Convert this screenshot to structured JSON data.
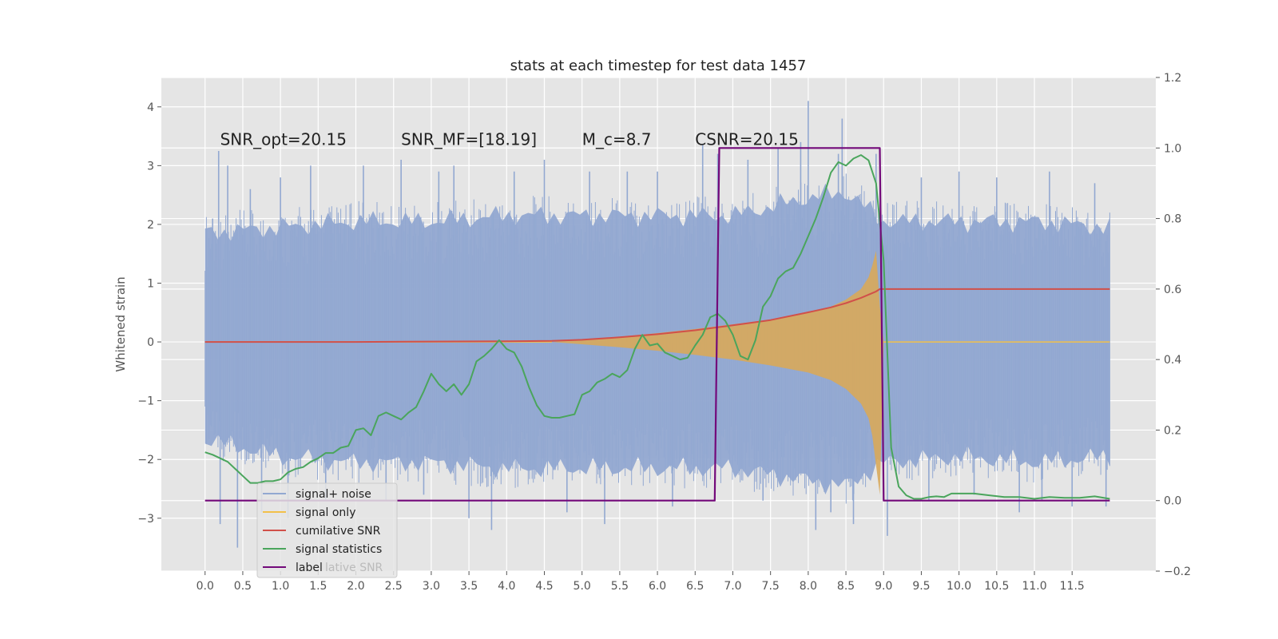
{
  "chart_data": {
    "type": "line",
    "title": "stats at each timestep for test data 1457",
    "ylabel": "Whitened strain",
    "xlabel": "",
    "xlim": [
      -0.58,
      12.61
    ],
    "ylim": [
      -3.9,
      4.5
    ],
    "y2lim": [
      -0.2,
      1.2
    ],
    "grid": true,
    "legend_position": "lower-left",
    "x_ticks": [
      "0.0",
      "0.5",
      "1.0",
      "1.5",
      "2.0",
      "2.5",
      "3.0",
      "3.5",
      "4.0",
      "4.5",
      "5.0",
      "5.5",
      "6.0",
      "6.5",
      "7.0",
      "7.5",
      "8.0",
      "8.5",
      "9.0",
      "9.5",
      "10.0",
      "10.5",
      "11.0",
      "11.5"
    ],
    "y_ticks": [
      "−3",
      "−2",
      "−1",
      "0",
      "1",
      "2",
      "3",
      "4"
    ],
    "y2_ticks": [
      "−0.2",
      "0.0",
      "0.2",
      "0.4",
      "0.6",
      "0.8",
      "1.0",
      "1.2"
    ],
    "annotations": [
      {
        "text": "SNR_opt=20.15",
        "x": 0.2,
        "y": 3.35
      },
      {
        "text": "SNR_MF=[18.19]",
        "x": 2.6,
        "y": 3.35
      },
      {
        "text": "M_c=8.7",
        "x": 5.0,
        "y": 3.35
      },
      {
        "text": "CSNR=20.15",
        "x": 6.5,
        "y": 3.35
      }
    ],
    "legend_entries": [
      {
        "label": "signal+ noise",
        "color": "#92a8d1"
      },
      {
        "label": "signal only",
        "color": "#f2c04a"
      },
      {
        "label": "cumilative SNR",
        "color": "#d1504a"
      },
      {
        "label": "signal statistics",
        "color": "#4aa55c"
      },
      {
        "label": "label",
        "color": "#73097a"
      }
    ],
    "legend_ghost_text": "lative SNR",
    "series": [
      {
        "name": "signal+ noise",
        "axis": "left",
        "color": "#92a8d1",
        "envelope_x": [
          0,
          1,
          2,
          3,
          4,
          5,
          6,
          7,
          8,
          8.5,
          9,
          10,
          11,
          12
        ],
        "envelope_upper": [
          2.2,
          2.3,
          2.4,
          2.4,
          2.5,
          2.5,
          2.5,
          2.5,
          2.8,
          2.9,
          2.4,
          2.4,
          2.4,
          2.3
        ],
        "envelope_lower": [
          -2.0,
          -2.3,
          -2.4,
          -2.4,
          -2.5,
          -2.5,
          -2.5,
          -2.5,
          -2.7,
          -2.8,
          -2.4,
          -2.3,
          -2.4,
          -2.3
        ],
        "spikes": [
          {
            "x": 0.1,
            "y": 2.1
          },
          {
            "x": 0.2,
            "y": -3.1
          },
          {
            "x": 0.18,
            "y": 3.25
          },
          {
            "x": 0.3,
            "y": 3.0
          },
          {
            "x": 0.43,
            "y": -3.5
          },
          {
            "x": 0.6,
            "y": 2.6
          },
          {
            "x": 0.75,
            "y": -2.9
          },
          {
            "x": 1.0,
            "y": 2.8
          },
          {
            "x": 1.1,
            "y": -3.0
          },
          {
            "x": 1.4,
            "y": 3.0
          },
          {
            "x": 1.6,
            "y": -2.7
          },
          {
            "x": 2.1,
            "y": 3.0
          },
          {
            "x": 2.4,
            "y": -2.7
          },
          {
            "x": 2.6,
            "y": 3.1
          },
          {
            "x": 2.9,
            "y": -2.6
          },
          {
            "x": 3.1,
            "y": 2.9
          },
          {
            "x": 3.3,
            "y": 3.0
          },
          {
            "x": 3.5,
            "y": -3.0
          },
          {
            "x": 3.8,
            "y": -3.2
          },
          {
            "x": 4.1,
            "y": 2.9
          },
          {
            "x": 4.5,
            "y": 3.1
          },
          {
            "x": 4.8,
            "y": -2.9
          },
          {
            "x": 5.1,
            "y": 2.9
          },
          {
            "x": 5.3,
            "y": -3.1
          },
          {
            "x": 5.6,
            "y": 2.9
          },
          {
            "x": 6.0,
            "y": 2.9
          },
          {
            "x": 6.2,
            "y": -2.8
          },
          {
            "x": 6.6,
            "y": 3.35
          },
          {
            "x": 6.8,
            "y": 3.2
          },
          {
            "x": 7.2,
            "y": 3.1
          },
          {
            "x": 7.4,
            "y": -2.7
          },
          {
            "x": 7.6,
            "y": 3.3
          },
          {
            "x": 7.9,
            "y": 3.4
          },
          {
            "x": 8.0,
            "y": 4.1
          },
          {
            "x": 8.1,
            "y": -3.2
          },
          {
            "x": 8.3,
            "y": -2.9
          },
          {
            "x": 8.4,
            "y": 3.2
          },
          {
            "x": 8.45,
            "y": 3.8
          },
          {
            "x": 8.6,
            "y": -3.1
          },
          {
            "x": 8.9,
            "y": 3.2
          },
          {
            "x": 9.05,
            "y": -3.3
          },
          {
            "x": 9.5,
            "y": 2.8
          },
          {
            "x": 9.6,
            "y": -2.7
          },
          {
            "x": 10.0,
            "y": 2.9
          },
          {
            "x": 10.2,
            "y": -2.6
          },
          {
            "x": 10.5,
            "y": 2.8
          },
          {
            "x": 10.8,
            "y": -2.9
          },
          {
            "x": 11.1,
            "y": -2.7
          },
          {
            "x": 11.2,
            "y": 2.9
          },
          {
            "x": 11.5,
            "y": -2.8
          },
          {
            "x": 11.8,
            "y": 2.7
          },
          {
            "x": 11.95,
            "y": -2.8
          }
        ]
      },
      {
        "name": "signal only",
        "axis": "left",
        "color": "#f2c04a",
        "envelope_x": [
          4.6,
          5.0,
          5.5,
          6.0,
          6.5,
          7.0,
          7.5,
          8.0,
          8.3,
          8.5,
          8.7,
          8.8,
          8.85,
          8.9,
          8.95,
          9.0
        ],
        "envelope_upper": [
          0.0,
          0.04,
          0.09,
          0.15,
          0.22,
          0.3,
          0.38,
          0.5,
          0.6,
          0.72,
          0.9,
          1.1,
          1.3,
          1.55,
          0.6,
          0.0
        ],
        "envelope_lower": [
          0.0,
          -0.04,
          -0.09,
          -0.15,
          -0.22,
          -0.3,
          -0.4,
          -0.52,
          -0.65,
          -0.8,
          -1.05,
          -1.3,
          -1.6,
          -2.1,
          -2.6,
          0.0
        ]
      },
      {
        "name": "cumilative SNR",
        "axis": "right",
        "color": "#d1504a",
        "x": [
          0,
          1,
          2,
          3,
          4,
          4.6,
          5,
          5.5,
          6,
          6.5,
          7,
          7.5,
          8,
          8.3,
          8.5,
          8.7,
          8.9,
          8.95,
          9.0,
          10,
          11,
          12
        ],
        "values": [
          0.45,
          0.45,
          0.45,
          0.451,
          0.452,
          0.453,
          0.456,
          0.463,
          0.472,
          0.483,
          0.497,
          0.512,
          0.534,
          0.548,
          0.56,
          0.575,
          0.593,
          0.6,
          0.6,
          0.6,
          0.6,
          0.6
        ]
      },
      {
        "name": "signal statistics",
        "axis": "right",
        "color": "#4aa55c",
        "x": [
          0,
          0.1,
          0.2,
          0.3,
          0.4,
          0.5,
          0.6,
          0.7,
          0.8,
          0.9,
          1.0,
          1.1,
          1.2,
          1.3,
          1.4,
          1.5,
          1.6,
          1.7,
          1.8,
          1.9,
          2.0,
          2.1,
          2.2,
          2.3,
          2.4,
          2.5,
          2.6,
          2.7,
          2.8,
          2.9,
          3.0,
          3.1,
          3.2,
          3.3,
          3.4,
          3.5,
          3.6,
          3.7,
          3.8,
          3.9,
          4.0,
          4.1,
          4.2,
          4.3,
          4.4,
          4.5,
          4.6,
          4.7,
          4.8,
          4.9,
          5.0,
          5.1,
          5.2,
          5.3,
          5.4,
          5.5,
          5.6,
          5.7,
          5.8,
          5.9,
          6.0,
          6.1,
          6.2,
          6.3,
          6.4,
          6.5,
          6.6,
          6.7,
          6.8,
          6.9,
          7.0,
          7.1,
          7.2,
          7.3,
          7.4,
          7.5,
          7.6,
          7.7,
          7.8,
          7.9,
          8.0,
          8.1,
          8.2,
          8.3,
          8.4,
          8.5,
          8.6,
          8.7,
          8.8,
          8.9,
          9.0,
          9.1,
          9.2,
          9.3,
          9.4,
          9.5,
          9.6,
          9.7,
          9.8,
          9.9,
          10.0,
          10.2,
          10.4,
          10.6,
          10.8,
          11.0,
          11.2,
          11.4,
          11.6,
          11.8,
          12.0
        ],
        "values": [
          0.137,
          0.13,
          0.12,
          0.11,
          0.09,
          0.07,
          0.05,
          0.05,
          0.055,
          0.055,
          0.06,
          0.08,
          0.09,
          0.095,
          0.11,
          0.12,
          0.135,
          0.135,
          0.15,
          0.155,
          0.2,
          0.205,
          0.185,
          0.24,
          0.25,
          0.24,
          0.23,
          0.25,
          0.265,
          0.31,
          0.36,
          0.33,
          0.31,
          0.33,
          0.3,
          0.33,
          0.395,
          0.41,
          0.43,
          0.455,
          0.43,
          0.42,
          0.38,
          0.32,
          0.27,
          0.24,
          0.235,
          0.235,
          0.24,
          0.245,
          0.3,
          0.31,
          0.335,
          0.345,
          0.36,
          0.35,
          0.37,
          0.43,
          0.47,
          0.44,
          0.445,
          0.42,
          0.41,
          0.4,
          0.405,
          0.44,
          0.47,
          0.52,
          0.53,
          0.51,
          0.47,
          0.41,
          0.4,
          0.455,
          0.55,
          0.58,
          0.63,
          0.65,
          0.66,
          0.7,
          0.75,
          0.8,
          0.86,
          0.93,
          0.96,
          0.95,
          0.97,
          0.98,
          0.965,
          0.9,
          0.68,
          0.15,
          0.04,
          0.015,
          0.005,
          0.005,
          0.01,
          0.012,
          0.01,
          0.02,
          0.02,
          0.02,
          0.015,
          0.01,
          0.01,
          0.005,
          0.01,
          0.008,
          0.008,
          0.012,
          0.005
        ]
      },
      {
        "name": "label",
        "axis": "right",
        "color": "#73097a",
        "x": [
          0,
          6.76,
          6.82,
          8.95,
          9.0,
          12.0
        ],
        "values": [
          0,
          0,
          1,
          1,
          0,
          0
        ]
      }
    ]
  }
}
